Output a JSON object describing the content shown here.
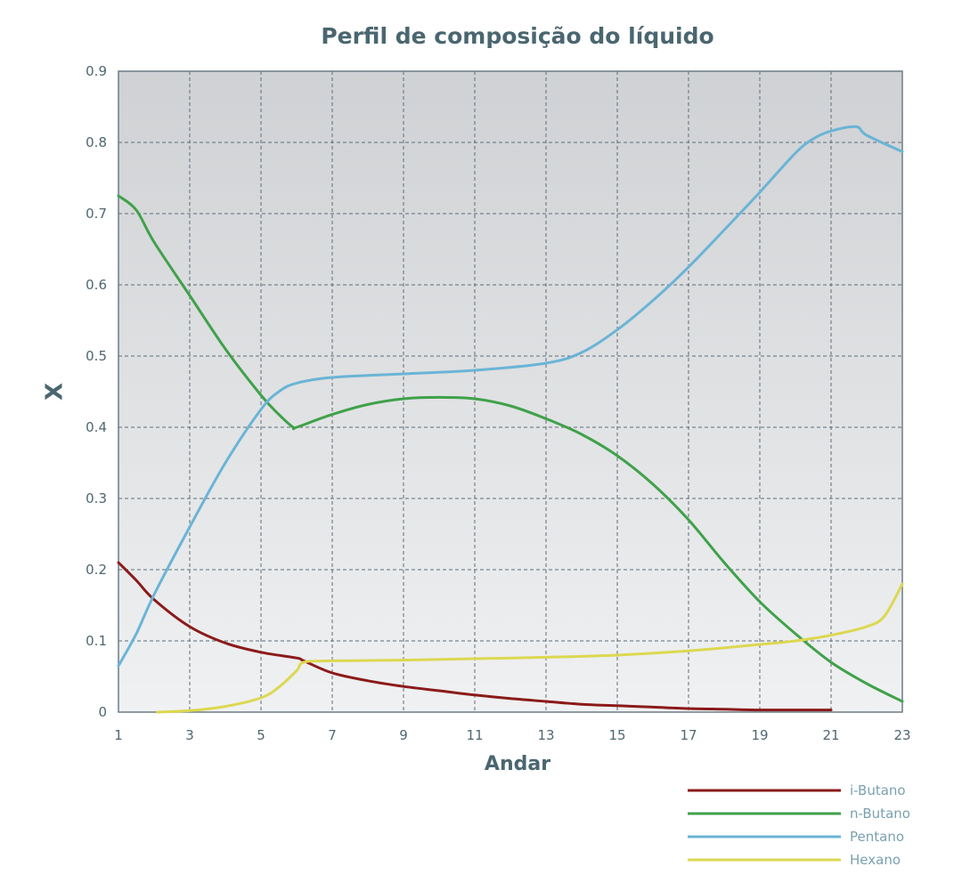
{
  "chart_data": {
    "type": "line",
    "title": "Perfil de composição do líquido",
    "xlabel": "Andar",
    "ylabel": "X",
    "xlim": [
      1,
      23
    ],
    "ylim": [
      0,
      0.9
    ],
    "xticks": [
      "1",
      "3",
      "5",
      "7",
      "9",
      "11",
      "13",
      "15",
      "17",
      "19",
      "21",
      "23"
    ],
    "yticks": [
      "0",
      "0.1",
      "0.2",
      "0.3",
      "0.4",
      "0.5",
      "0.6",
      "0.7",
      "0.8",
      "0.9"
    ],
    "grid": true,
    "legend_position": "bottom-right",
    "series": [
      {
        "name": "i-Butano",
        "color": "#8b1a1a",
        "points": [
          [
            1,
            0.21
          ],
          [
            1.5,
            0.185
          ],
          [
            2,
            0.158
          ],
          [
            3,
            0.12
          ],
          [
            4,
            0.097
          ],
          [
            5,
            0.084
          ],
          [
            6,
            0.076
          ],
          [
            6.2,
            0.072
          ],
          [
            7,
            0.055
          ],
          [
            8,
            0.044
          ],
          [
            9,
            0.036
          ],
          [
            10,
            0.03
          ],
          [
            11,
            0.024
          ],
          [
            12,
            0.019
          ],
          [
            13,
            0.015
          ],
          [
            14,
            0.011
          ],
          [
            15,
            0.009
          ],
          [
            16,
            0.007
          ],
          [
            17,
            0.005
          ],
          [
            18,
            0.004
          ],
          [
            19,
            0.003
          ],
          [
            20,
            0.003
          ],
          [
            21,
            0.003
          ]
        ]
      },
      {
        "name": "n-Butano",
        "color": "#3fa14a",
        "points": [
          [
            1,
            0.725
          ],
          [
            1.5,
            0.705
          ],
          [
            2,
            0.66
          ],
          [
            3,
            0.585
          ],
          [
            4,
            0.51
          ],
          [
            5,
            0.445
          ],
          [
            5.5,
            0.418
          ],
          [
            5.9,
            0.4
          ],
          [
            6,
            0.4
          ],
          [
            7,
            0.418
          ],
          [
            8,
            0.432
          ],
          [
            9,
            0.44
          ],
          [
            10,
            0.442
          ],
          [
            11,
            0.44
          ],
          [
            12,
            0.43
          ],
          [
            13,
            0.412
          ],
          [
            14,
            0.39
          ],
          [
            15,
            0.36
          ],
          [
            16,
            0.32
          ],
          [
            17,
            0.27
          ],
          [
            18,
            0.21
          ],
          [
            19,
            0.155
          ],
          [
            20,
            0.11
          ],
          [
            21,
            0.07
          ],
          [
            22,
            0.04
          ],
          [
            23,
            0.015
          ]
        ]
      },
      {
        "name": "Pentano",
        "color": "#6ab4d6",
        "points": [
          [
            1,
            0.065
          ],
          [
            1.5,
            0.11
          ],
          [
            2,
            0.165
          ],
          [
            3,
            0.26
          ],
          [
            4,
            0.35
          ],
          [
            5,
            0.425
          ],
          [
            5.5,
            0.45
          ],
          [
            6,
            0.462
          ],
          [
            7,
            0.47
          ],
          [
            9,
            0.475
          ],
          [
            11,
            0.48
          ],
          [
            13,
            0.49
          ],
          [
            14,
            0.505
          ],
          [
            15,
            0.537
          ],
          [
            16,
            0.578
          ],
          [
            17,
            0.625
          ],
          [
            18,
            0.677
          ],
          [
            19,
            0.73
          ],
          [
            20,
            0.785
          ],
          [
            20.5,
            0.805
          ],
          [
            21,
            0.816
          ],
          [
            21.7,
            0.822
          ],
          [
            22,
            0.81
          ],
          [
            23,
            0.787
          ]
        ]
      },
      {
        "name": "Hexano",
        "color": "#dcd850",
        "points": [
          [
            2.1,
            0
          ],
          [
            3,
            0.002
          ],
          [
            4,
            0.008
          ],
          [
            5,
            0.02
          ],
          [
            5.5,
            0.035
          ],
          [
            6,
            0.058
          ],
          [
            6.2,
            0.07
          ],
          [
            7,
            0.072
          ],
          [
            9,
            0.073
          ],
          [
            11,
            0.075
          ],
          [
            13,
            0.077
          ],
          [
            15,
            0.08
          ],
          [
            17,
            0.086
          ],
          [
            19,
            0.095
          ],
          [
            20,
            0.1
          ],
          [
            21,
            0.108
          ],
          [
            22,
            0.12
          ],
          [
            22.5,
            0.135
          ],
          [
            23,
            0.18
          ]
        ]
      }
    ]
  }
}
